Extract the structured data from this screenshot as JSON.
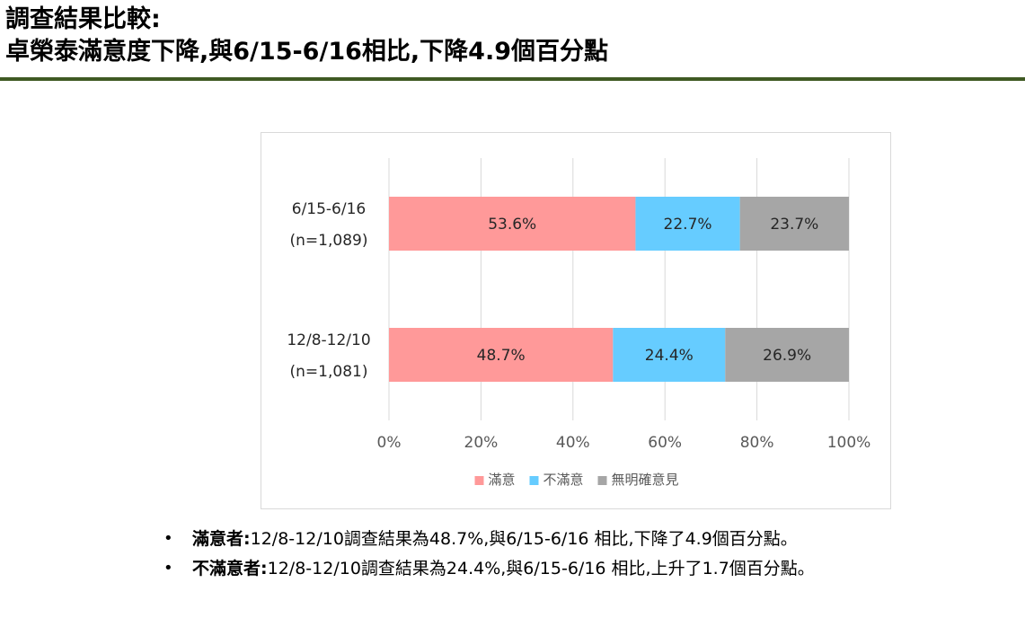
{
  "header": {
    "title_line1": "調查結果比較:",
    "title_line2": "卓榮泰滿意度下降,與6/15-6/16相比,下降4.9個百分點"
  },
  "colors": {
    "satisfied": "#ff9999",
    "dissatisfied": "#66ccff",
    "no_opinion": "#a6a6a6",
    "rule": "#3f5a23"
  },
  "chart_data": {
    "type": "bar",
    "orientation": "horizontal",
    "stacked": true,
    "percent": true,
    "categories": [
      {
        "line1": "6/15-6/16",
        "line2": "(n=1,089)"
      },
      {
        "line1": "12/8-12/10",
        "line2": "(n=1,081)"
      }
    ],
    "series": [
      {
        "name": "滿意",
        "values": [
          53.6,
          48.7
        ],
        "labels": [
          "53.6%",
          "48.7%"
        ]
      },
      {
        "name": "不滿意",
        "values": [
          22.7,
          24.4
        ],
        "labels": [
          "22.7%",
          "24.4%"
        ]
      },
      {
        "name": "無明確意見",
        "values": [
          23.7,
          26.9
        ],
        "labels": [
          "23.7%",
          "26.9%"
        ]
      }
    ],
    "xlim": [
      0,
      100
    ],
    "x_ticks": [
      "0%",
      "20%",
      "40%",
      "60%",
      "80%",
      "100%"
    ],
    "grid": true,
    "legend_position": "bottom"
  },
  "notes": [
    {
      "label": "滿意者",
      "colon": ":",
      "text": "12/8-12/10調查結果為48.7%,與6/15-6/16 相比,下降了4.9個百分點。"
    },
    {
      "label": "不滿意者",
      "colon": ":",
      "text": "12/8-12/10調查結果為24.4%,與6/15-6/16 相比,上升了1.7個百分點。"
    }
  ],
  "bullet_glyph": "•"
}
